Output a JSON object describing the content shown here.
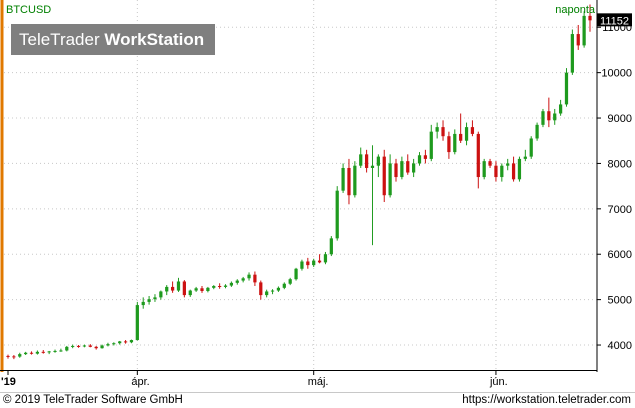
{
  "watermark": {
    "brand": "TeleTrader",
    "product": "WorkStation"
  },
  "footer": {
    "copyright": "© 2019 TeleTrader Software GmbH",
    "url": "https://workstation.teletrader.com"
  },
  "colors": {
    "up": "#1e9a1e",
    "down": "#cc1111",
    "symbol_text": "#008000",
    "last_price_bg": "#000000",
    "grid": "#c8c8c8"
  },
  "chart_data": {
    "type": "candlestick",
    "symbol": "BTCUSD",
    "interval": "naponta",
    "last_price": "11152",
    "ylim": [
      3450,
      11600
    ],
    "y_ticks": [
      4000,
      5000,
      6000,
      7000,
      8000,
      9000,
      10000,
      11000
    ],
    "x_ticks": [
      {
        "label": "'19",
        "index": 0
      },
      {
        "label": "ápr.",
        "index": 22
      },
      {
        "label": "máj.",
        "index": 52
      },
      {
        "label": "jún.",
        "index": 83
      }
    ],
    "grid": true,
    "candles": [
      [
        3760,
        3790,
        3700,
        3750
      ],
      [
        3750,
        3780,
        3690,
        3740
      ],
      [
        3745,
        3830,
        3720,
        3800
      ],
      [
        3800,
        3850,
        3780,
        3830
      ],
      [
        3830,
        3860,
        3790,
        3810
      ],
      [
        3810,
        3880,
        3790,
        3850
      ],
      [
        3850,
        3890,
        3810,
        3840
      ],
      [
        3840,
        3870,
        3800,
        3860
      ],
      [
        3860,
        3900,
        3830,
        3870
      ],
      [
        3870,
        3920,
        3850,
        3880
      ],
      [
        3880,
        3980,
        3860,
        3960
      ],
      [
        3960,
        4010,
        3930,
        3980
      ],
      [
        3980,
        4000,
        3940,
        3970
      ],
      [
        3970,
        4010,
        3950,
        3990
      ],
      [
        3990,
        4020,
        3950,
        3960
      ],
      [
        3960,
        3980,
        3900,
        3930
      ],
      [
        3930,
        4010,
        3920,
        3990
      ],
      [
        3990,
        4050,
        3970,
        4020
      ],
      [
        4020,
        4060,
        3990,
        4040
      ],
      [
        4040,
        4090,
        4010,
        4080
      ],
      [
        4080,
        4110,
        4030,
        4060
      ],
      [
        4060,
        4120,
        4040,
        4110
      ],
      [
        4110,
        4950,
        4100,
        4880
      ],
      [
        4880,
        5050,
        4800,
        4950
      ],
      [
        4950,
        5080,
        4890,
        5010
      ],
      [
        5010,
        5120,
        4950,
        5050
      ],
      [
        5050,
        5200,
        5000,
        5180
      ],
      [
        5180,
        5320,
        5100,
        5280
      ],
      [
        5280,
        5400,
        5150,
        5200
      ],
      [
        5200,
        5480,
        5170,
        5400
      ],
      [
        5400,
        5430,
        5050,
        5100
      ],
      [
        5100,
        5220,
        5060,
        5200
      ],
      [
        5200,
        5280,
        5170,
        5250
      ],
      [
        5250,
        5300,
        5150,
        5190
      ],
      [
        5190,
        5280,
        5160,
        5260
      ],
      [
        5260,
        5320,
        5230,
        5300
      ],
      [
        5300,
        5360,
        5240,
        5280
      ],
      [
        5280,
        5340,
        5250,
        5310
      ],
      [
        5310,
        5400,
        5280,
        5370
      ],
      [
        5370,
        5450,
        5330,
        5420
      ],
      [
        5420,
        5500,
        5380,
        5470
      ],
      [
        5470,
        5600,
        5420,
        5550
      ],
      [
        5550,
        5620,
        5300,
        5380
      ],
      [
        5380,
        5420,
        5000,
        5100
      ],
      [
        5100,
        5220,
        5050,
        5180
      ],
      [
        5180,
        5230,
        5120,
        5200
      ],
      [
        5200,
        5290,
        5170,
        5260
      ],
      [
        5260,
        5380,
        5230,
        5350
      ],
      [
        5350,
        5480,
        5320,
        5450
      ],
      [
        5450,
        5700,
        5420,
        5680
      ],
      [
        5680,
        5880,
        5640,
        5840
      ],
      [
        5840,
        5920,
        5680,
        5760
      ],
      [
        5760,
        5900,
        5720,
        5860
      ],
      [
        5860,
        6000,
        5800,
        5820
      ],
      [
        5820,
        6050,
        5780,
        6000
      ],
      [
        6000,
        6400,
        5960,
        6350
      ],
      [
        6350,
        7500,
        6300,
        7400
      ],
      [
        7400,
        8000,
        7350,
        7900
      ],
      [
        7900,
        8100,
        7100,
        7300
      ],
      [
        7300,
        8050,
        7250,
        7950
      ],
      [
        7950,
        8350,
        7900,
        8200
      ],
      [
        8200,
        8300,
        7800,
        7900
      ],
      [
        7900,
        8400,
        6200,
        7950
      ],
      [
        7950,
        8200,
        7700,
        8150
      ],
      [
        8150,
        8300,
        7150,
        7300
      ],
      [
        7300,
        8200,
        7250,
        8000
      ],
      [
        8000,
        8100,
        7600,
        7700
      ],
      [
        7700,
        8150,
        7650,
        8050
      ],
      [
        8050,
        8200,
        7750,
        7800
      ],
      [
        7800,
        8100,
        7700,
        8000
      ],
      [
        8000,
        8250,
        7950,
        8180
      ],
      [
        8180,
        8300,
        8000,
        8100
      ],
      [
        8100,
        8850,
        8050,
        8700
      ],
      [
        8700,
        8900,
        8550,
        8800
      ],
      [
        8800,
        8950,
        8500,
        8600
      ],
      [
        8600,
        8700,
        8100,
        8250
      ],
      [
        8250,
        8750,
        8200,
        8650
      ],
      [
        8650,
        9100,
        8450,
        8500
      ],
      [
        8500,
        8900,
        8400,
        8800
      ],
      [
        8800,
        8950,
        8600,
        8650
      ],
      [
        8650,
        8700,
        7450,
        7700
      ],
      [
        7700,
        8100,
        7650,
        8050
      ],
      [
        8050,
        8100,
        7900,
        7950
      ],
      [
        7950,
        8050,
        7600,
        7700
      ],
      [
        7700,
        8000,
        7600,
        7950
      ],
      [
        7950,
        8100,
        7850,
        8000
      ],
      [
        8000,
        8150,
        7600,
        7650
      ],
      [
        7650,
        8150,
        7600,
        8100
      ],
      [
        8100,
        8300,
        8050,
        8150
      ],
      [
        8150,
        8600,
        8100,
        8550
      ],
      [
        8550,
        8900,
        8500,
        8850
      ],
      [
        8850,
        9200,
        8800,
        9150
      ],
      [
        9150,
        9450,
        8800,
        8950
      ],
      [
        8950,
        9200,
        8850,
        9100
      ],
      [
        9100,
        9400,
        9050,
        9300
      ],
      [
        9300,
        10100,
        9250,
        10000
      ],
      [
        10000,
        10950,
        9950,
        10850
      ],
      [
        10850,
        11050,
        10500,
        10600
      ],
      [
        10600,
        11350,
        10550,
        11250
      ],
      [
        11250,
        11500,
        10900,
        11152
      ]
    ]
  }
}
